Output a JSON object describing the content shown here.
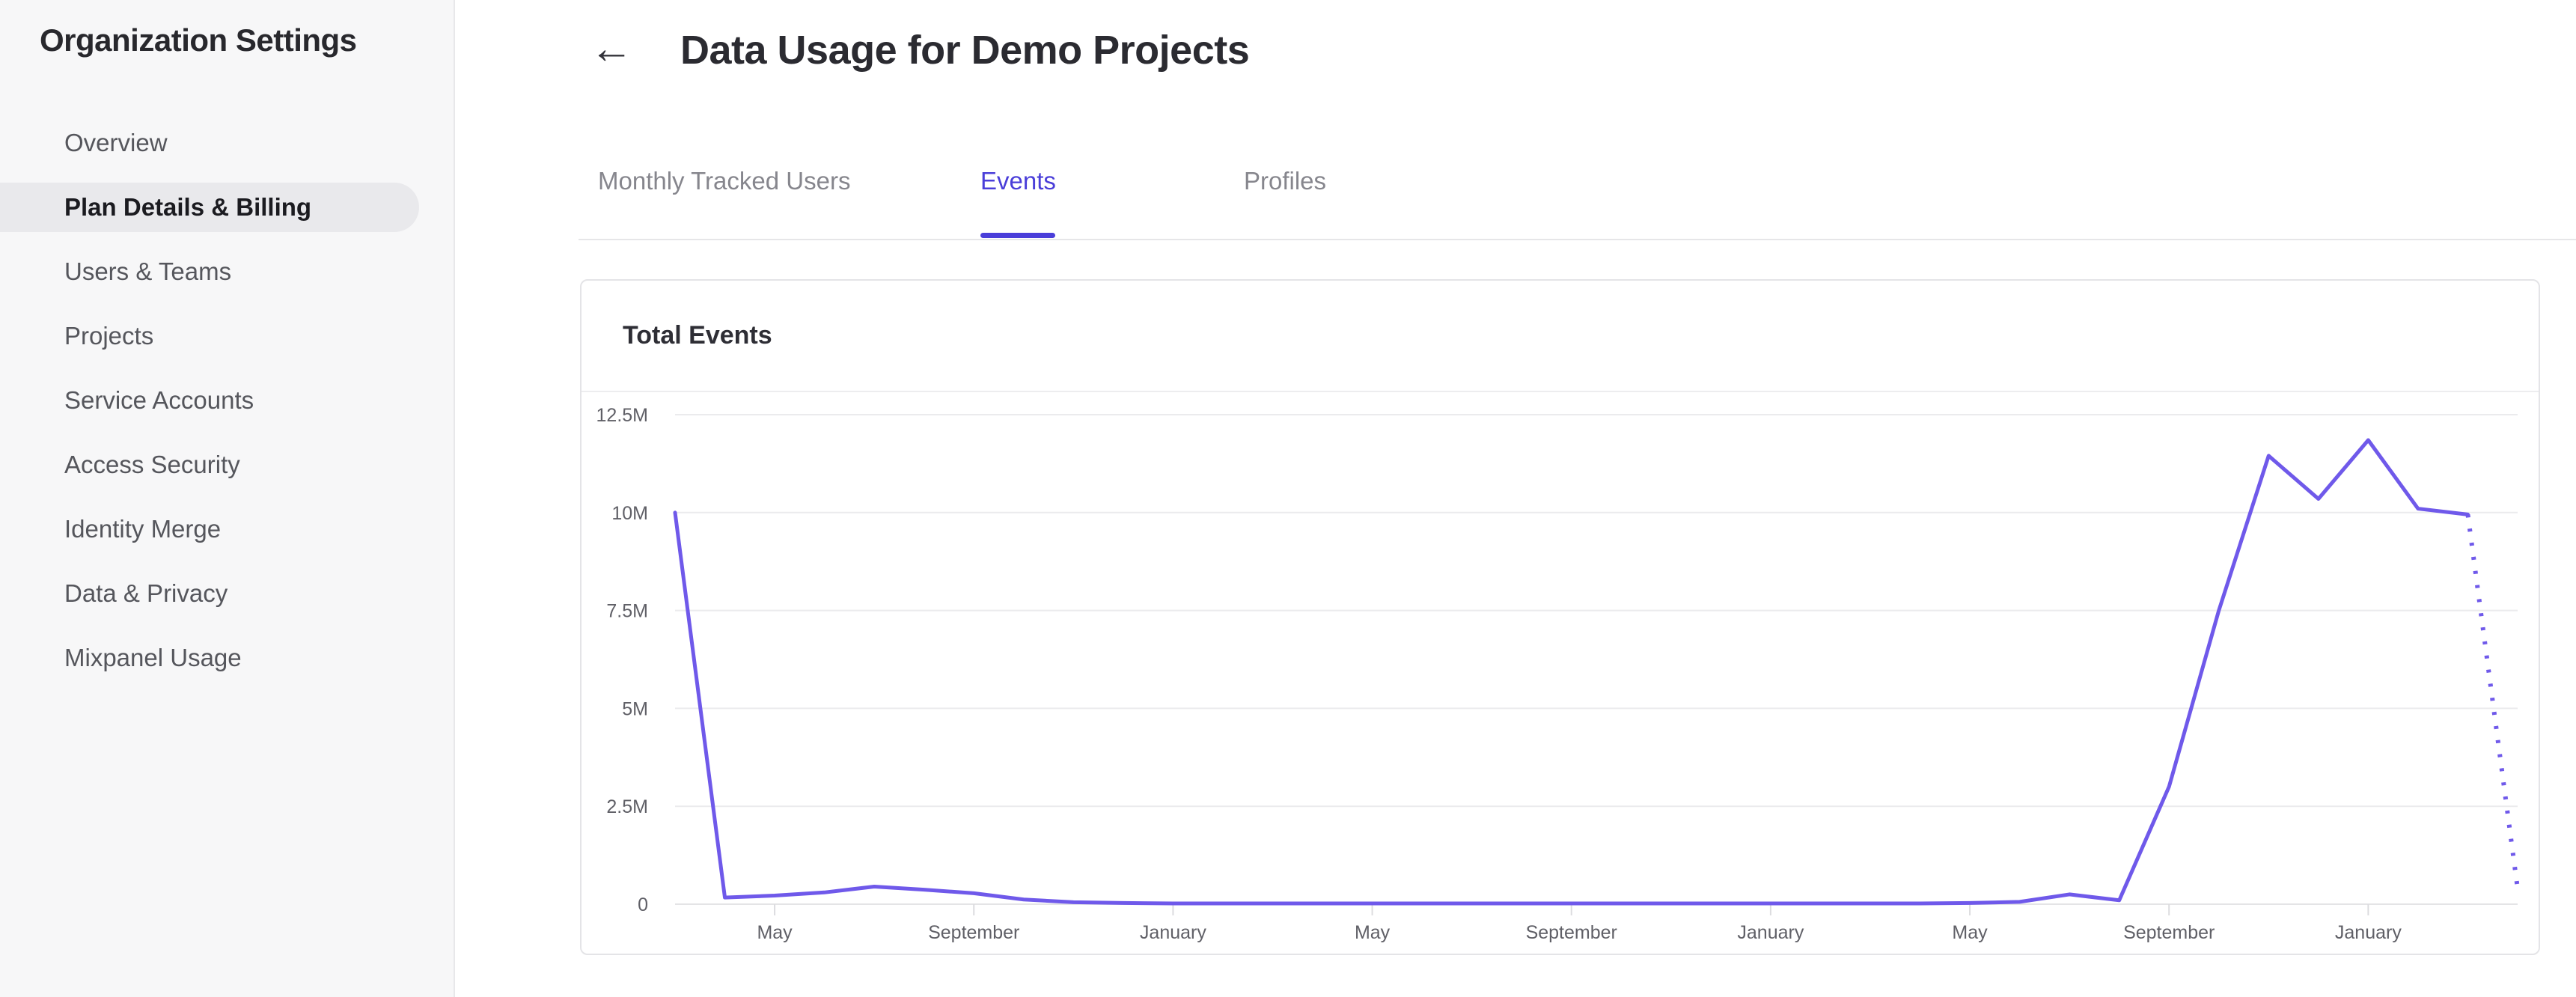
{
  "app": {
    "accent_color": "#4a3ed9",
    "chart_line_color": "#6f59ea",
    "grid_color": "#ebebed",
    "zero_line_color": "#e4e4e6",
    "tick_color": "#dcdcdf"
  },
  "sidebar": {
    "title": "Organization Settings",
    "items": [
      {
        "label": "Overview",
        "selected": false
      },
      {
        "label": "Plan Details & Billing",
        "selected": true
      },
      {
        "label": "Users & Teams",
        "selected": false
      },
      {
        "label": "Projects",
        "selected": false
      },
      {
        "label": "Service Accounts",
        "selected": false
      },
      {
        "label": "Access Security",
        "selected": false
      },
      {
        "label": "Identity Merge",
        "selected": false
      },
      {
        "label": "Data & Privacy",
        "selected": false
      },
      {
        "label": "Mixpanel Usage",
        "selected": false
      }
    ]
  },
  "header": {
    "back_icon": "←",
    "title": "Data Usage for Demo Projects"
  },
  "tabs": [
    {
      "label": "Monthly Tracked Users",
      "active": false
    },
    {
      "label": "Events",
      "active": true
    },
    {
      "label": "Profiles",
      "active": false
    }
  ],
  "card": {
    "title": "Total Events"
  },
  "chart_data": {
    "type": "line",
    "title": "Total Events",
    "x_unit": "month",
    "ylabel": "",
    "xlabel": "",
    "grid": true,
    "legend": "none",
    "ylim": [
      0,
      12.5
    ],
    "yticks": {
      "values": [
        0,
        2.5,
        5,
        7.5,
        10,
        12.5
      ],
      "labels": [
        "0",
        "2.5M",
        "5M",
        "7.5M",
        "10M",
        "12.5M"
      ]
    },
    "x_tick_indices": [
      2,
      6,
      10,
      14,
      18,
      22,
      26,
      30,
      34
    ],
    "x_tick_labels": [
      "May",
      "September",
      "January",
      "May",
      "September",
      "January",
      "May",
      "September",
      "January"
    ],
    "series": [
      {
        "name": "Total Events",
        "unit": "millions of events",
        "values": [
          10,
          0.17,
          0.22,
          0.3,
          0.45,
          0.37,
          0.28,
          0.12,
          0.05,
          0.03,
          0.02,
          0.02,
          0.02,
          0.02,
          0.02,
          0.02,
          0.02,
          0.02,
          0.02,
          0.02,
          0.02,
          0.02,
          0.02,
          0.02,
          0.02,
          0.02,
          0.03,
          0.06,
          0.25,
          0.1,
          3.0,
          7.5,
          11.45,
          10.35,
          11.85,
          10.1,
          9.95
        ]
      }
    ],
    "projection": {
      "style": "dotted",
      "value": 0.4
    }
  }
}
